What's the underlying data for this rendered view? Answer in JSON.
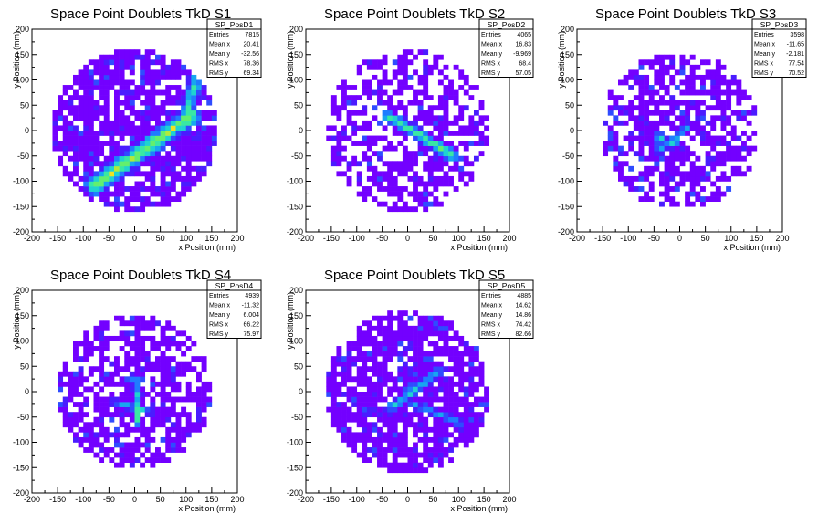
{
  "colors": {
    "palette": [
      "#7300ff",
      "#4a1cff",
      "#2f4cff",
      "#1f7cff",
      "#17a6f0",
      "#1fd3d0",
      "#39e8a4",
      "#63ef6e",
      "#b1ea3c",
      "#f0e221"
    ],
    "frame": "#000000",
    "stats_bg": "#ffffff"
  },
  "chart_data": [
    {
      "type": "heatmap",
      "title": "Space Point Doublets TkD S1",
      "xlabel": "x Position (mm)",
      "ylabel": "y Position (mm)",
      "xlim": [
        -200,
        200
      ],
      "ylim": [
        -200,
        200
      ],
      "x_ticks": [
        "-200",
        "-150",
        "-100",
        "-50",
        "0",
        "50",
        "100",
        "150",
        "200"
      ],
      "y_ticks": [
        "200",
        "150",
        "100",
        "50",
        "0",
        "-50",
        "-100",
        "-150",
        "-200"
      ],
      "bin_width_mm": 10,
      "fill_radius_mm": 160,
      "background_density": 0.8,
      "features": [
        {
          "kind": "band",
          "from": [
            -80,
            -110
          ],
          "to": [
            110,
            30
          ],
          "width": 22,
          "level": 8
        },
        {
          "kind": "band",
          "from": [
            100,
            30
          ],
          "to": [
            120,
            100
          ],
          "width": 18,
          "level": 6
        }
      ],
      "stats": {
        "name": "SP_PosD1",
        "rows": [
          {
            "label": "Entries",
            "value": "7815"
          },
          {
            "label": "Mean x",
            "value": "20.41"
          },
          {
            "label": "Mean y",
            "value": "-32.56"
          },
          {
            "label": "RMS x",
            "value": "78.36"
          },
          {
            "label": "RMS y",
            "value": "69.34"
          }
        ]
      }
    },
    {
      "type": "heatmap",
      "title": "Space Point Doublets TkD S2",
      "xlabel": "x Position (mm)",
      "ylabel": "y Position (mm)",
      "xlim": [
        -200,
        200
      ],
      "ylim": [
        -200,
        200
      ],
      "x_ticks": [
        "-200",
        "-150",
        "-100",
        "-50",
        "0",
        "50",
        "100",
        "150",
        "200"
      ],
      "y_ticks": [
        "200",
        "150",
        "100",
        "50",
        "0",
        "-50",
        "-100",
        "-150",
        "-200"
      ],
      "bin_width_mm": 10,
      "fill_radius_mm": 160,
      "background_density": 0.55,
      "features": [
        {
          "kind": "band",
          "from": [
            -40,
            30
          ],
          "to": [
            90,
            -50
          ],
          "width": 14,
          "level": 7
        }
      ],
      "stats": {
        "name": "SP_PosD2",
        "rows": [
          {
            "label": "Entries",
            "value": "4065"
          },
          {
            "label": "Mean x",
            "value": "16.83"
          },
          {
            "label": "Mean y",
            "value": "-9.969"
          },
          {
            "label": "RMS x",
            "value": "68.4"
          },
          {
            "label": "RMS y",
            "value": "57.05"
          }
        ]
      }
    },
    {
      "type": "heatmap",
      "title": "Space Point Doublets TkD S3",
      "xlabel": "x Position (mm)",
      "ylabel": "y Position (mm)",
      "xlim": [
        -200,
        200
      ],
      "ylim": [
        -200,
        200
      ],
      "x_ticks": [
        "-200",
        "-150",
        "-100",
        "-50",
        "0",
        "50",
        "100",
        "150",
        "200"
      ],
      "y_ticks": [
        "200",
        "150",
        "100",
        "50",
        "0",
        "-50",
        "-100",
        "-150",
        "-200"
      ],
      "bin_width_mm": 10,
      "fill_radius_mm": 155,
      "background_density": 0.6,
      "features": [
        {
          "kind": "band",
          "from": [
            -50,
            -10
          ],
          "to": [
            0,
            -30
          ],
          "width": 8,
          "level": 5
        },
        {
          "kind": "band",
          "from": [
            -40,
            -40
          ],
          "to": [
            20,
            10
          ],
          "width": 8,
          "level": 5
        },
        {
          "kind": "band",
          "from": [
            -40,
            0
          ],
          "to": [
            -40,
            -40
          ],
          "width": 6,
          "level": 4
        }
      ],
      "stats": {
        "name": "SP_PosD3",
        "rows": [
          {
            "label": "Entries",
            "value": "3598"
          },
          {
            "label": "Mean x",
            "value": "-11.65"
          },
          {
            "label": "Mean y",
            "value": "-2.181"
          },
          {
            "label": "RMS x",
            "value": "77.54"
          },
          {
            "label": "RMS y",
            "value": "70.52"
          }
        ]
      }
    },
    {
      "type": "heatmap",
      "title": "Space Point Doublets TkD S4",
      "xlabel": "x Position (mm)",
      "ylabel": "y Position (mm)",
      "xlim": [
        -200,
        200
      ],
      "ylim": [
        -200,
        200
      ],
      "x_ticks": [
        "-200",
        "-150",
        "-100",
        "-50",
        "0",
        "50",
        "100",
        "150",
        "200"
      ],
      "y_ticks": [
        "200",
        "150",
        "100",
        "50",
        "0",
        "-50",
        "-100",
        "-150",
        "-200"
      ],
      "bin_width_mm": 10,
      "fill_radius_mm": 150,
      "background_density": 0.65,
      "features": [
        {
          "kind": "band",
          "from": [
            0,
            30
          ],
          "to": [
            5,
            -60
          ],
          "width": 8,
          "level": 6
        },
        {
          "kind": "band",
          "from": [
            -40,
            -20
          ],
          "to": [
            30,
            -40
          ],
          "width": 8,
          "level": 5
        }
      ],
      "stats": {
        "name": "SP_PosD4",
        "rows": [
          {
            "label": "Entries",
            "value": "4939"
          },
          {
            "label": "Mean x",
            "value": "-11.32"
          },
          {
            "label": "Mean y",
            "value": "6.004"
          },
          {
            "label": "RMS x",
            "value": "66.22"
          },
          {
            "label": "RMS y",
            "value": "75.97"
          }
        ]
      }
    },
    {
      "type": "heatmap",
      "title": "Space Point Doublets TkD S5",
      "xlabel": "x Position (mm)",
      "ylabel": "y Position (mm)",
      "xlim": [
        -200,
        200
      ],
      "ylim": [
        -200,
        200
      ],
      "x_ticks": [
        "-200",
        "-150",
        "-100",
        "-50",
        "0",
        "50",
        "100",
        "150",
        "200"
      ],
      "y_ticks": [
        "200",
        "150",
        "100",
        "50",
        "0",
        "-50",
        "-100",
        "-150",
        "-200"
      ],
      "bin_width_mm": 10,
      "fill_radius_mm": 160,
      "background_density": 0.8,
      "features": [
        {
          "kind": "band",
          "from": [
            -30,
            -30
          ],
          "to": [
            60,
            40
          ],
          "width": 12,
          "level": 5
        },
        {
          "kind": "band",
          "from": [
            0,
            -20
          ],
          "to": [
            100,
            -60
          ],
          "width": 10,
          "level": 4
        }
      ],
      "stats": {
        "name": "SP_PosD5",
        "rows": [
          {
            "label": "Entries",
            "value": "4885"
          },
          {
            "label": "Mean x",
            "value": "14.62"
          },
          {
            "label": "Mean y",
            "value": "14.86"
          },
          {
            "label": "RMS x",
            "value": "74.42"
          },
          {
            "label": "RMS y",
            "value": "82.66"
          }
        ]
      }
    }
  ]
}
